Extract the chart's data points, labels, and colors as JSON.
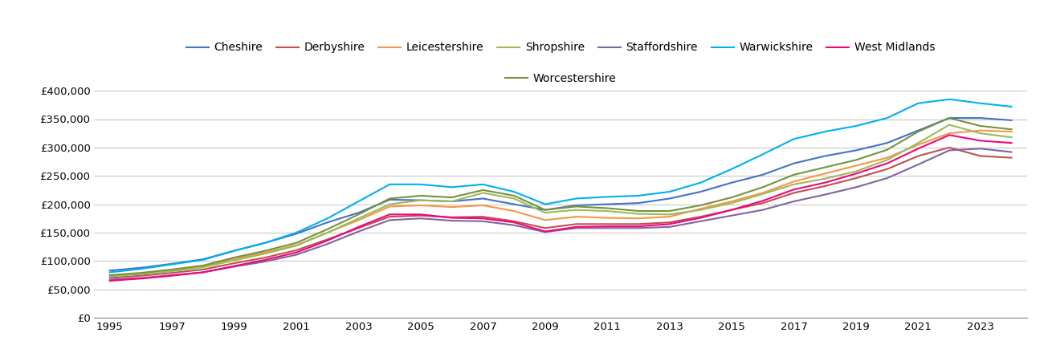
{
  "legend_entries": [
    "Cheshire",
    "Derbyshire",
    "Leicestershire",
    "Shropshire",
    "Staffordshire",
    "Warwickshire",
    "West Midlands",
    "Worcestershire"
  ],
  "line_colors": {
    "Cheshire": "#4472c4",
    "Derbyshire": "#c0504d",
    "Leicestershire": "#f79646",
    "Shropshire": "#9bbb59",
    "Staffordshire": "#8064a2",
    "Warwickshire": "#00b0f0",
    "West Midlands": "#f0047f",
    "Worcestershire": "#76933c"
  },
  "years": [
    1995,
    1996,
    1997,
    1998,
    1999,
    2000,
    2001,
    2002,
    2003,
    2004,
    2005,
    2006,
    2007,
    2008,
    2009,
    2010,
    2011,
    2012,
    2013,
    2014,
    2015,
    2016,
    2017,
    2018,
    2019,
    2020,
    2021,
    2022,
    2023,
    2024
  ],
  "data": {
    "Cheshire": [
      83000,
      88000,
      95000,
      103000,
      118000,
      132000,
      148000,
      168000,
      185000,
      208000,
      207000,
      205000,
      210000,
      200000,
      190000,
      198000,
      200000,
      202000,
      210000,
      222000,
      238000,
      252000,
      272000,
      285000,
      295000,
      308000,
      330000,
      352000,
      352000,
      348000
    ],
    "Derbyshire": [
      70000,
      74000,
      79000,
      85000,
      96000,
      106000,
      119000,
      138000,
      158000,
      178000,
      180000,
      177000,
      178000,
      170000,
      158000,
      165000,
      165000,
      165000,
      168000,
      178000,
      190000,
      202000,
      220000,
      232000,
      246000,
      262000,
      285000,
      300000,
      285000,
      282000
    ],
    "Leicestershire": [
      74000,
      78000,
      84000,
      91000,
      104000,
      115000,
      128000,
      150000,
      172000,
      196000,
      198000,
      195000,
      198000,
      188000,
      172000,
      178000,
      176000,
      175000,
      178000,
      192000,
      205000,
      220000,
      240000,
      254000,
      268000,
      282000,
      305000,
      325000,
      330000,
      328000
    ],
    "Shropshire": [
      73000,
      77000,
      82000,
      89000,
      101000,
      113000,
      127000,
      150000,
      175000,
      200000,
      207000,
      205000,
      220000,
      210000,
      185000,
      190000,
      188000,
      183000,
      182000,
      190000,
      202000,
      218000,
      235000,
      245000,
      258000,
      278000,
      308000,
      340000,
      325000,
      318000
    ],
    "Staffordshire": [
      67000,
      70000,
      75000,
      80000,
      90000,
      99000,
      111000,
      130000,
      152000,
      172000,
      175000,
      171000,
      170000,
      163000,
      151000,
      158000,
      158000,
      158000,
      160000,
      170000,
      180000,
      190000,
      205000,
      217000,
      230000,
      246000,
      270000,
      295000,
      298000,
      292000
    ],
    "Warwickshire": [
      80000,
      86000,
      94000,
      102000,
      118000,
      132000,
      150000,
      175000,
      205000,
      235000,
      235000,
      230000,
      235000,
      222000,
      200000,
      210000,
      213000,
      215000,
      222000,
      238000,
      262000,
      288000,
      315000,
      328000,
      338000,
      352000,
      378000,
      385000,
      378000,
      372000
    ],
    "West Midlands": [
      65000,
      69000,
      74000,
      80000,
      91000,
      102000,
      115000,
      136000,
      160000,
      182000,
      182000,
      176000,
      175000,
      168000,
      152000,
      160000,
      161000,
      161000,
      165000,
      176000,
      190000,
      206000,
      226000,
      238000,
      254000,
      272000,
      298000,
      322000,
      312000,
      308000
    ],
    "Worcestershire": [
      75000,
      79000,
      85000,
      92000,
      106000,
      118000,
      132000,
      156000,
      182000,
      210000,
      215000,
      212000,
      225000,
      215000,
      190000,
      196000,
      193000,
      188000,
      188000,
      198000,
      212000,
      230000,
      252000,
      265000,
      278000,
      296000,
      328000,
      352000,
      338000,
      332000
    ]
  },
  "ylim": [
    0,
    420000
  ],
  "yticks": [
    0,
    50000,
    100000,
    150000,
    200000,
    250000,
    300000,
    350000,
    400000
  ],
  "xticks": [
    1995,
    1997,
    1999,
    2001,
    2003,
    2005,
    2007,
    2009,
    2011,
    2013,
    2015,
    2017,
    2019,
    2021,
    2023
  ],
  "background_color": "#ffffff",
  "grid_color": "#c8c8c8"
}
